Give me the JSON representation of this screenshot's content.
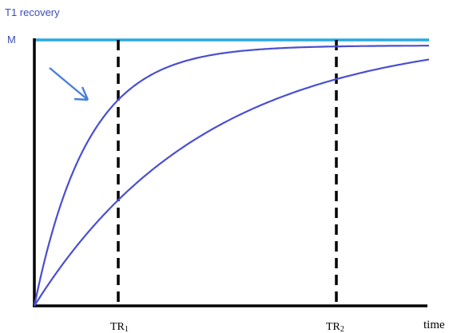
{
  "diagram": {
    "title": "T1 recovery",
    "m_label": "M",
    "tr1_label": "TR",
    "tr1_sub": "1",
    "tr2_label": "TR",
    "tr2_sub": "2",
    "x_label": "time"
  },
  "colors": {
    "title": "#3d4db8",
    "curve": "#4a4fd0",
    "m_line": "#29a8e0",
    "axis": "#000000",
    "arrow": "#4a7fd8"
  }
}
